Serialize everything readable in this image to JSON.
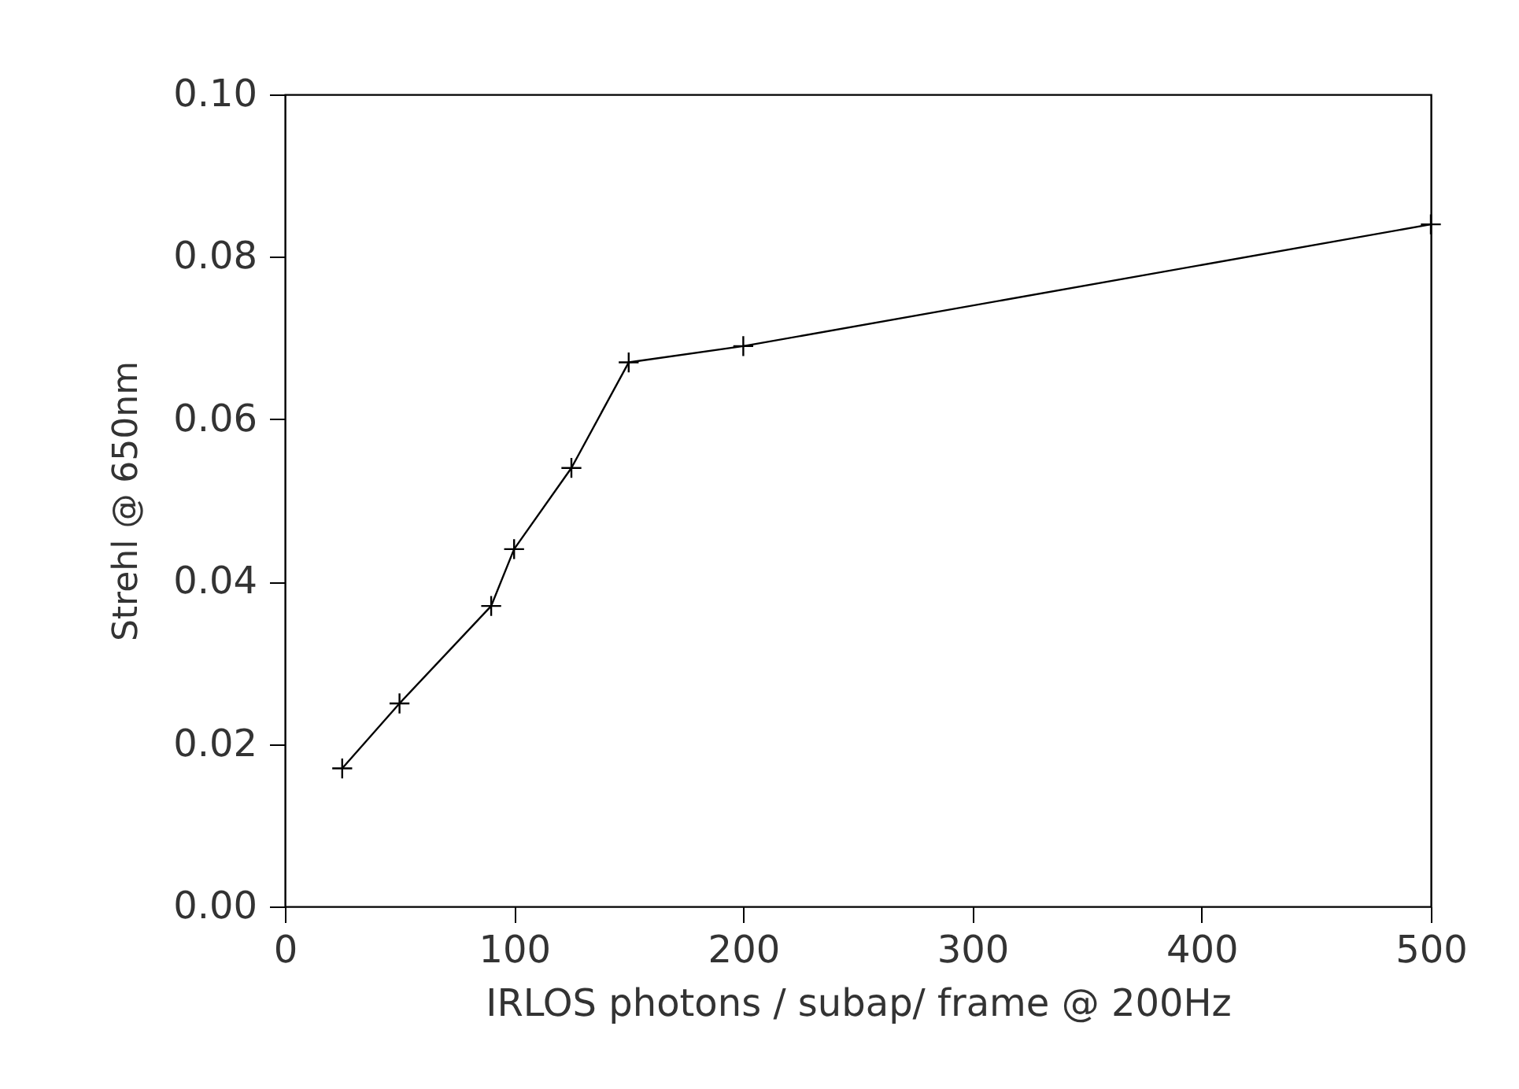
{
  "chart_data": {
    "type": "line",
    "xlabel": "IRLOS photons / subap/ frame @ 200Hz",
    "ylabel": "Strehl @ 650nm",
    "x": [
      25,
      50,
      90,
      100,
      125,
      150,
      200,
      500
    ],
    "series": [
      {
        "color": "#000000",
        "values": [
          0.017,
          0.025,
          0.037,
          0.044,
          0.054,
          0.067,
          0.069,
          0.084
        ]
      }
    ],
    "xlim": [
      0,
      500
    ],
    "xticks": [
      0,
      100,
      200,
      300,
      400,
      500
    ],
    "ylim": [
      0,
      0.1
    ],
    "yticks": [
      {
        "value": 0,
        "label": "0.00"
      },
      {
        "value": 0.02,
        "label": "0.02"
      },
      {
        "value": 0.04,
        "label": "0.04"
      },
      {
        "value": 0.06,
        "label": "0.06"
      },
      {
        "value": 0.08,
        "label": "0.08"
      },
      {
        "value": 0.1,
        "label": "0.10"
      }
    ],
    "marker": "cross",
    "line_style": "solid",
    "grid": false
  }
}
